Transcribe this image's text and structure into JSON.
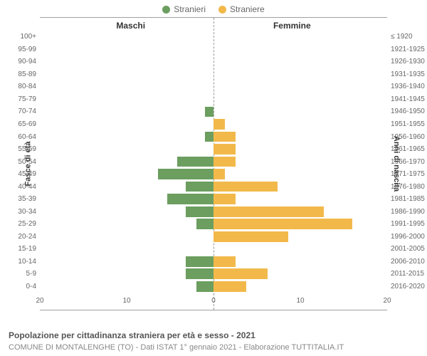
{
  "legend": [
    {
      "label": "Stranieri",
      "color": "#6b9e5f"
    },
    {
      "label": "Straniere",
      "color": "#f2b94a"
    }
  ],
  "headers": {
    "male": "Maschi",
    "female": "Femmine"
  },
  "axis_titles": {
    "left": "Fasce di età",
    "right": "Anni di nascita"
  },
  "chart": {
    "type": "bar-pyramid",
    "x_max": 20,
    "x_ticks": [
      20,
      10,
      0,
      10,
      20
    ],
    "background": "#ffffff",
    "grid_color": "#e6e6e6",
    "bar_color_m": "#6b9e5f",
    "bar_color_f": "#f2b94a",
    "rows": [
      {
        "age": "100+",
        "birth": "≤ 1920",
        "m": 0,
        "f": 0
      },
      {
        "age": "95-99",
        "birth": "1921-1925",
        "m": 0,
        "f": 0
      },
      {
        "age": "90-94",
        "birth": "1926-1930",
        "m": 0,
        "f": 0
      },
      {
        "age": "85-89",
        "birth": "1931-1935",
        "m": 0,
        "f": 0
      },
      {
        "age": "80-84",
        "birth": "1936-1940",
        "m": 0,
        "f": 0
      },
      {
        "age": "75-79",
        "birth": "1941-1945",
        "m": 0,
        "f": 0
      },
      {
        "age": "70-74",
        "birth": "1946-1950",
        "m": 1.0,
        "f": 0
      },
      {
        "age": "65-69",
        "birth": "1951-1955",
        "m": 0,
        "f": 1.3
      },
      {
        "age": "60-64",
        "birth": "1956-1960",
        "m": 1.0,
        "f": 2.5
      },
      {
        "age": "55-59",
        "birth": "1961-1965",
        "m": 0,
        "f": 2.5
      },
      {
        "age": "50-54",
        "birth": "1966-1970",
        "m": 4.2,
        "f": 2.5
      },
      {
        "age": "45-49",
        "birth": "1971-1975",
        "m": 6.4,
        "f": 1.3
      },
      {
        "age": "40-44",
        "birth": "1976-1980",
        "m": 3.2,
        "f": 7.4
      },
      {
        "age": "35-39",
        "birth": "1981-1985",
        "m": 5.3,
        "f": 2.5
      },
      {
        "age": "30-34",
        "birth": "1986-1990",
        "m": 3.2,
        "f": 12.7
      },
      {
        "age": "25-29",
        "birth": "1991-1995",
        "m": 2.0,
        "f": 16.0
      },
      {
        "age": "20-24",
        "birth": "1996-2000",
        "m": 0,
        "f": 8.6
      },
      {
        "age": "15-19",
        "birth": "2001-2005",
        "m": 0,
        "f": 0
      },
      {
        "age": "10-14",
        "birth": "2006-2010",
        "m": 3.2,
        "f": 2.5
      },
      {
        "age": "5-9",
        "birth": "2011-2015",
        "m": 3.2,
        "f": 6.2
      },
      {
        "age": "0-4",
        "birth": "2016-2020",
        "m": 2.0,
        "f": 3.8
      }
    ]
  },
  "title": "Popolazione per cittadinanza straniera per età e sesso - 2021",
  "subtitle": "COMUNE DI MONTALENGHE (TO) - Dati ISTAT 1° gennaio 2021 - Elaborazione TUTTITALIA.IT"
}
